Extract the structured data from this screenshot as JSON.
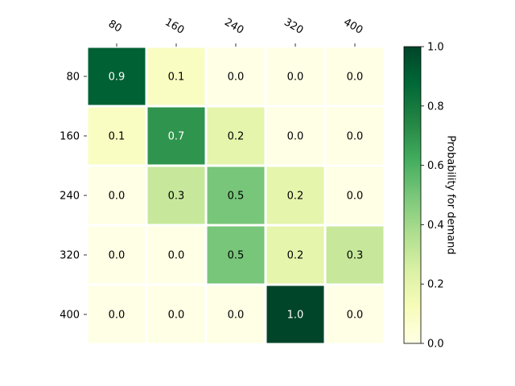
{
  "chart_data": {
    "type": "heatmap",
    "title": "",
    "x_labels": [
      "80",
      "160",
      "240",
      "320",
      "400"
    ],
    "y_labels": [
      "80",
      "160",
      "240",
      "320",
      "400"
    ],
    "values": [
      [
        0.9,
        0.1,
        0.0,
        0.0,
        0.0
      ],
      [
        0.1,
        0.7,
        0.2,
        0.0,
        0.0
      ],
      [
        0.0,
        0.3,
        0.5,
        0.2,
        0.0
      ],
      [
        0.0,
        0.0,
        0.5,
        0.2,
        0.3
      ],
      [
        0.0,
        0.0,
        0.0,
        1.0,
        0.0
      ]
    ],
    "cell_labels": [
      [
        "0.9",
        "0.1",
        "0.0",
        "0.0",
        "0.0"
      ],
      [
        "0.1",
        "0.7",
        "0.2",
        "0.0",
        "0.0"
      ],
      [
        "0.0",
        "0.3",
        "0.5",
        "0.2",
        "0.0"
      ],
      [
        "0.0",
        "0.0",
        "0.5",
        "0.2",
        "0.3"
      ],
      [
        "0.0",
        "0.0",
        "0.0",
        "1.0",
        "0.0"
      ]
    ],
    "x_axis_position": "top",
    "colorscale": "YlGn",
    "colorbar": {
      "label": "Probability for demand",
      "range": [
        0.0,
        1.0
      ],
      "ticks": [
        0.0,
        0.2,
        0.4,
        0.6,
        0.8,
        1.0
      ],
      "tick_labels": [
        "0.0",
        "0.2",
        "0.4",
        "0.6",
        "0.8",
        "1.0"
      ]
    },
    "grid": false
  }
}
